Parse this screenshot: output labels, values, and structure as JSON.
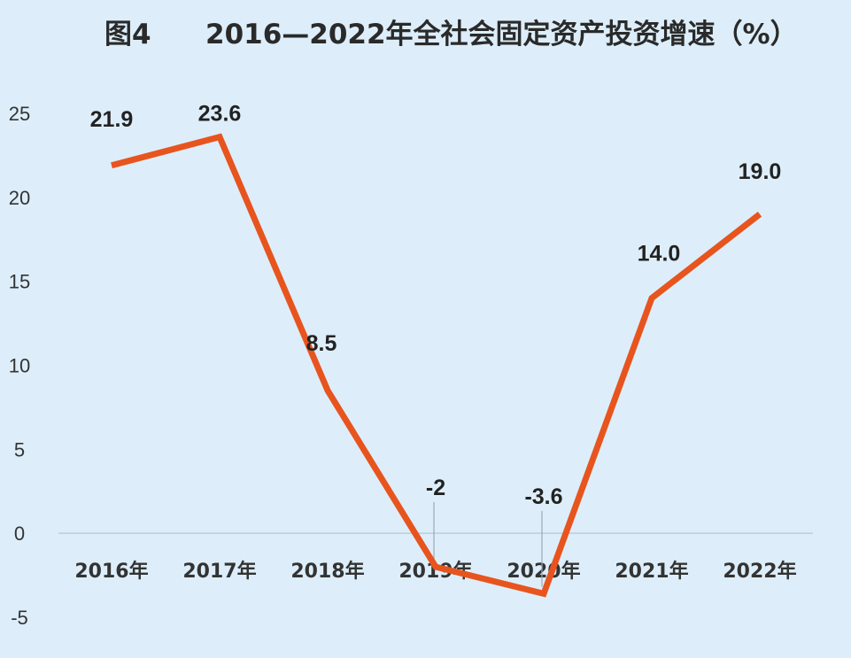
{
  "chart_data": {
    "type": "line",
    "title_prefix": "图4",
    "title": "2016—2022年全社会固定资产投资增速（%）",
    "categories": [
      "2016年",
      "2017年",
      "2018年",
      "2019年",
      "2020年",
      "2021年",
      "2022年"
    ],
    "series": [
      {
        "values": [
          21.9,
          23.6,
          8.5,
          -2,
          -3.6,
          14.0,
          19.0
        ]
      }
    ],
    "data_labels": [
      "21.9",
      "23.6",
      "8.5",
      "-2",
      "-3.6",
      "14.0",
      "19.0"
    ],
    "yticks": [
      25,
      20,
      15,
      10,
      5,
      0,
      -5
    ],
    "ylim": [
      -5,
      25
    ],
    "line_color": "#e8541e",
    "background_color": "#ddeefa",
    "grid": false,
    "legend": "none"
  }
}
